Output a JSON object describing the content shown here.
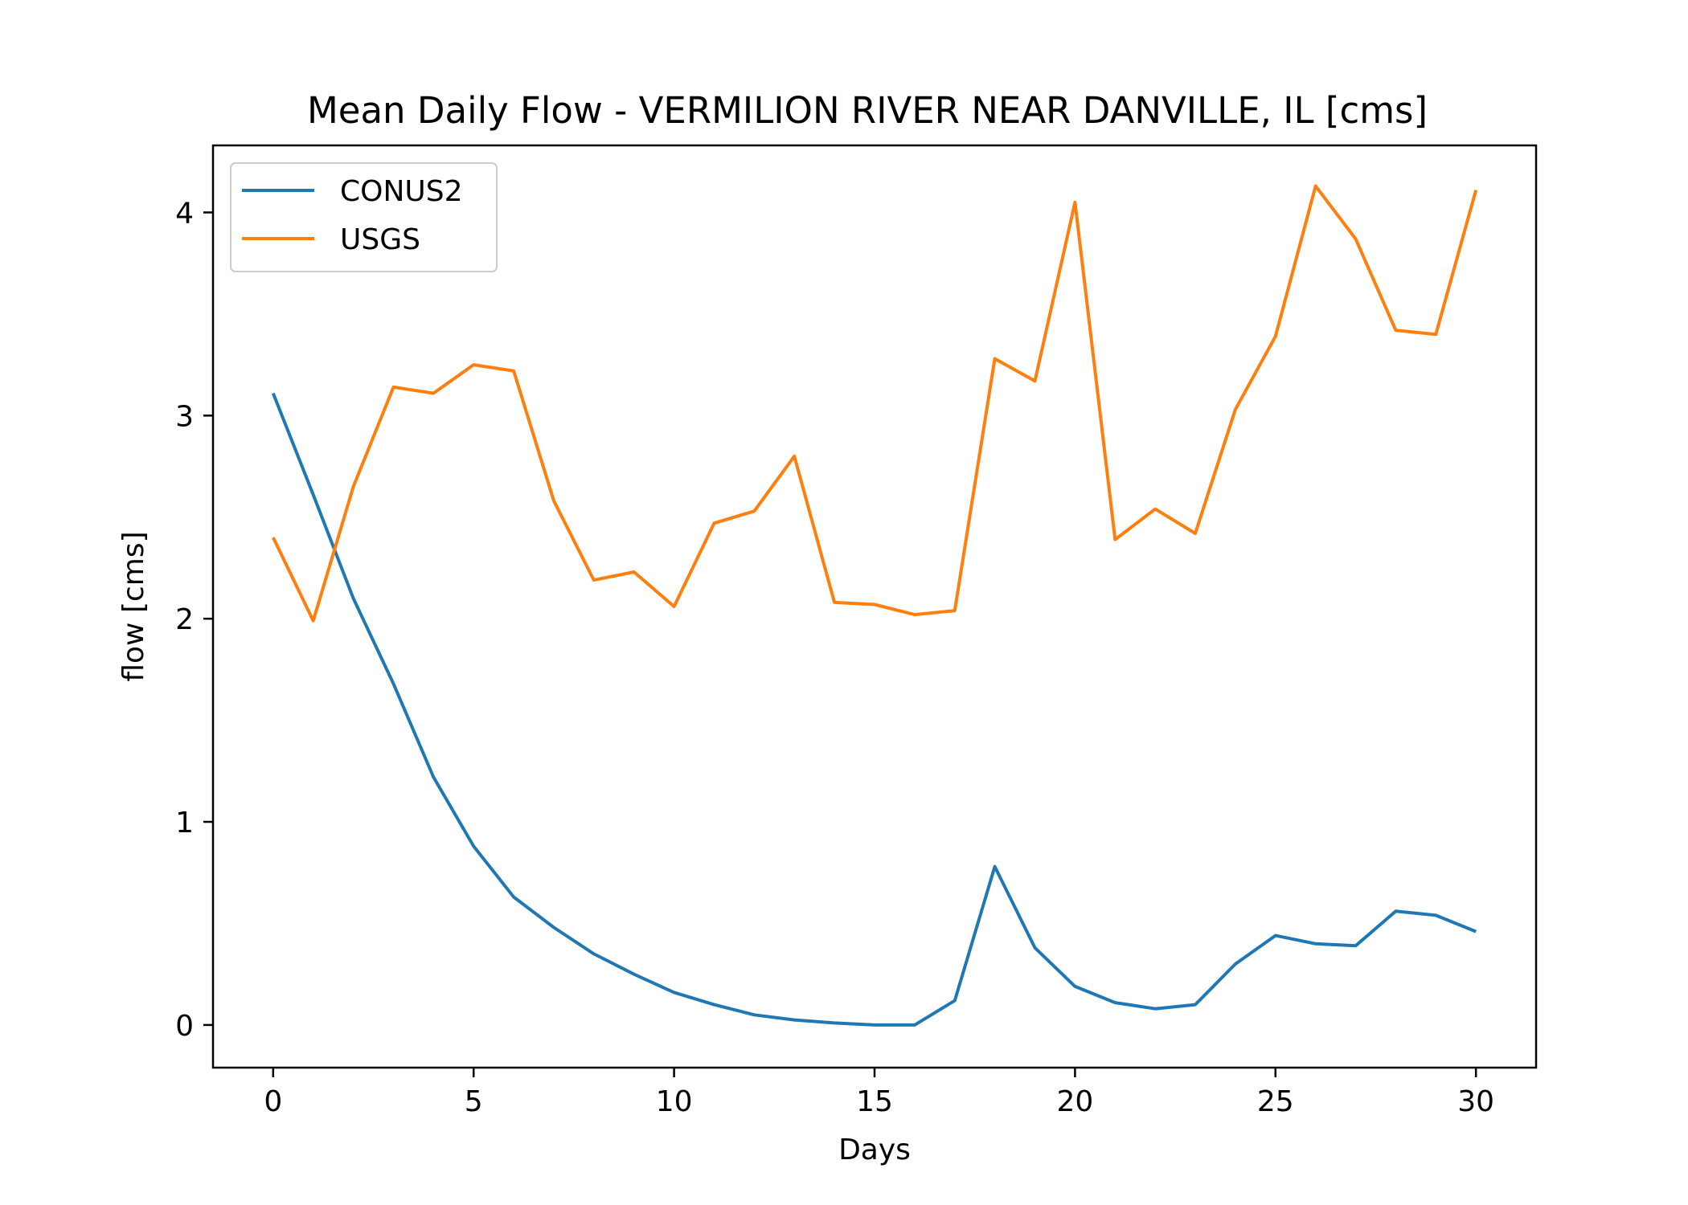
{
  "chart_data": {
    "type": "line",
    "title": "Mean Daily Flow - VERMILION RIVER NEAR DANVILLE, IL [cms]",
    "xlabel": "Days",
    "ylabel": "flow [cms]",
    "xlim": [
      -1.5,
      31.5
    ],
    "ylim": [
      -0.21,
      4.33
    ],
    "xticks": [
      0,
      5,
      10,
      15,
      20,
      25,
      30
    ],
    "yticks": [
      0,
      1,
      2,
      3,
      4
    ],
    "grid": false,
    "legend": "top-left",
    "x": [
      0,
      1,
      2,
      3,
      4,
      5,
      6,
      7,
      8,
      9,
      10,
      11,
      12,
      13,
      14,
      15,
      16,
      17,
      18,
      19,
      20,
      21,
      22,
      23,
      24,
      25,
      26,
      27,
      28,
      29,
      30
    ],
    "series": [
      {
        "name": "CONUS2",
        "color": "#1f77b4",
        "values": [
          3.11,
          2.61,
          2.1,
          1.68,
          1.22,
          0.88,
          0.63,
          0.48,
          0.35,
          0.25,
          0.16,
          0.1,
          0.05,
          0.025,
          0.01,
          0.0,
          0.0,
          0.12,
          0.78,
          0.38,
          0.19,
          0.11,
          0.08,
          0.1,
          0.3,
          0.44,
          0.4,
          0.39,
          0.56,
          0.54,
          0.46
        ]
      },
      {
        "name": "USGS",
        "color": "#ff7f0e",
        "values": [
          2.4,
          1.99,
          2.65,
          3.14,
          3.11,
          3.25,
          3.22,
          2.58,
          2.19,
          2.23,
          2.06,
          2.47,
          2.53,
          2.8,
          2.08,
          2.07,
          2.02,
          2.04,
          3.28,
          3.17,
          4.05,
          2.39,
          2.54,
          2.42,
          3.03,
          3.39,
          4.13,
          3.87,
          3.42,
          3.4,
          4.11
        ]
      }
    ]
  }
}
